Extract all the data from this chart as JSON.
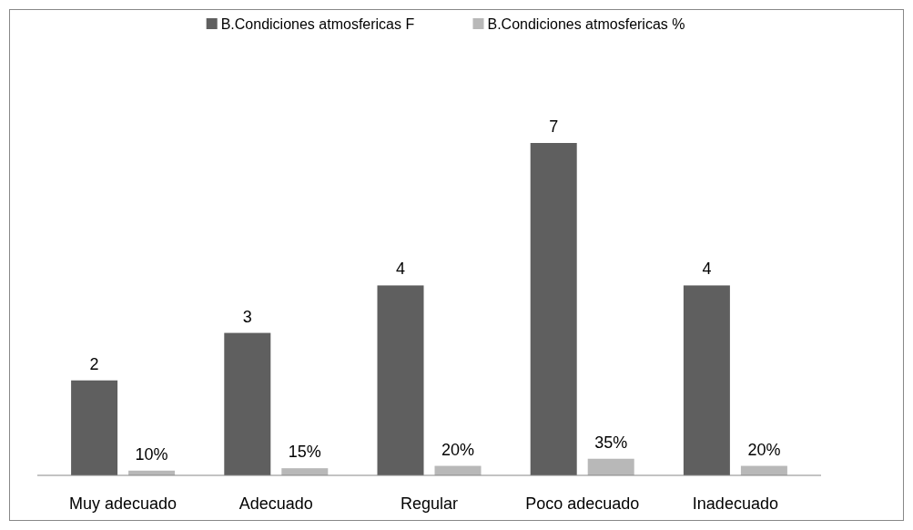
{
  "chart_data": {
    "type": "bar",
    "categories": [
      "Muy adecuado",
      "Adecuado",
      "Regular",
      "Poco adecuado",
      "Inadecuado"
    ],
    "series": [
      {
        "name": "B.Condiciones atmosfericas F",
        "color": "#5f5f5f",
        "values": [
          2,
          3,
          4,
          7,
          4
        ],
        "value_labels": [
          "2",
          "3",
          "4",
          "7",
          "4"
        ]
      },
      {
        "name": "B.Condiciones atmosfericas %",
        "color": "#b8b8b8",
        "values": [
          0.1,
          0.15,
          0.2,
          0.35,
          0.2
        ],
        "value_labels": [
          "10%",
          "15%",
          "20%",
          "35%",
          "20%"
        ]
      }
    ],
    "legend": "top",
    "grid": false
  }
}
